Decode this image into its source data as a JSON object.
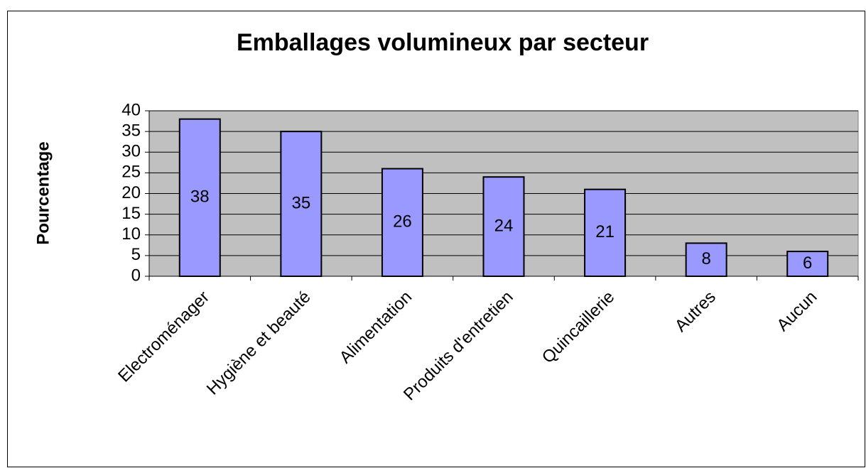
{
  "chart_data": {
    "type": "bar",
    "title": "Emballages volumineux par secteur",
    "y_label": "Pourcentage",
    "categories": [
      "Electroménager",
      "Hygiène et beauté",
      "Alimentation",
      "Produits d'entretien",
      "Quincaillerie",
      "Autres",
      "Aucun"
    ],
    "values": [
      38,
      35,
      26,
      24,
      21,
      8,
      6
    ],
    "color": "#9999ff",
    "ylim": [
      0,
      40
    ],
    "yticks": [
      0,
      5,
      10,
      15,
      20,
      25,
      30,
      35,
      40
    ],
    "grid": true
  }
}
